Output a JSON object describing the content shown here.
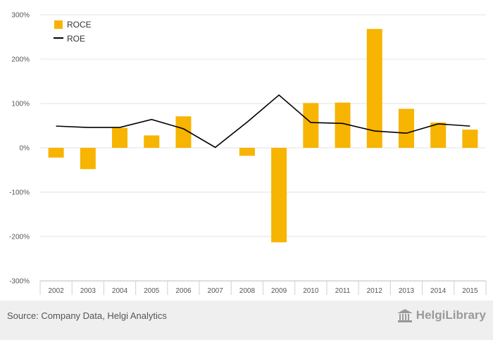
{
  "chart_data": {
    "type": "bar",
    "categories": [
      "2002",
      "2003",
      "2004",
      "2005",
      "2006",
      "2007",
      "2008",
      "2009",
      "2010",
      "2011",
      "2012",
      "2013",
      "2014",
      "2015"
    ],
    "series": [
      {
        "name": "ROCE",
        "type": "bar",
        "color": "#f7b400",
        "values": [
          -22,
          -48,
          45,
          28,
          71,
          0,
          -18,
          -213,
          101,
          102,
          268,
          88,
          57,
          41
        ]
      },
      {
        "name": "ROE",
        "type": "line",
        "color": "#000000",
        "values": [
          49,
          46,
          46,
          64,
          43,
          1,
          58,
          119,
          57,
          55,
          38,
          33,
          54,
          49
        ]
      }
    ],
    "ylim": [
      -300,
      300
    ],
    "yticks": [
      -300,
      -200,
      -100,
      0,
      100,
      200,
      300
    ],
    "ytick_labels": [
      "-300%",
      "-200%",
      "-100%",
      "0%",
      "100%",
      "200%",
      "300%"
    ],
    "grid": true,
    "legend_position": "top-left"
  },
  "footer": {
    "source": "Source: Company Data, Helgi Analytics",
    "brand": "HelgiLibrary"
  },
  "icons": {
    "brand_icon": "library-building-icon"
  }
}
